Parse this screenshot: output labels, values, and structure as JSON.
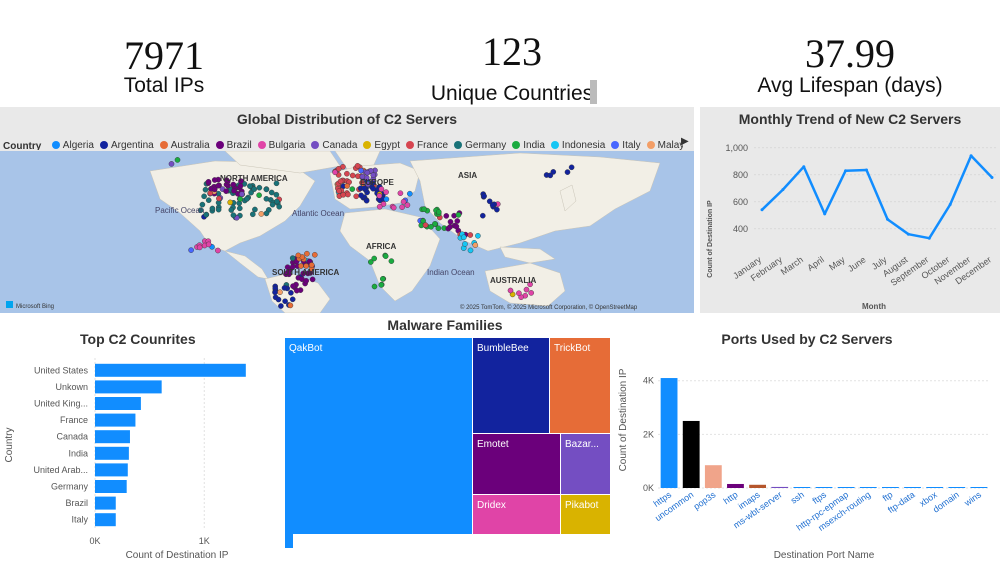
{
  "kpis": [
    {
      "value": "7971",
      "label": "Total IPs"
    },
    {
      "value": "123",
      "label": "Unique Countries"
    },
    {
      "value": "37.99",
      "label": "Avg Lifespan (days)"
    }
  ],
  "map": {
    "title": "Global Distribution of C2 Servers",
    "legend_title": "Country",
    "legend": [
      {
        "name": "Algeria",
        "color": "#118dff"
      },
      {
        "name": "Argentina",
        "color": "#12239e"
      },
      {
        "name": "Australia",
        "color": "#e66c37"
      },
      {
        "name": "Brazil",
        "color": "#6b007b"
      },
      {
        "name": "Bulgaria",
        "color": "#e044a7"
      },
      {
        "name": "Canada",
        "color": "#744ec2"
      },
      {
        "name": "Egypt",
        "color": "#d9b300"
      },
      {
        "name": "France",
        "color": "#d64550"
      },
      {
        "name": "Germany",
        "color": "#197278"
      },
      {
        "name": "India",
        "color": "#1aab40"
      },
      {
        "name": "Indonesia",
        "color": "#15c6f4"
      },
      {
        "name": "Italy",
        "color": "#4766ff"
      },
      {
        "name": "Malaysia",
        "color": "#f39e66"
      }
    ],
    "labels": {
      "north_america": "NORTH AMERICA",
      "europe": "EUROPE",
      "asia": "ASIA",
      "pacific": "Pacific\nOcean",
      "atlantic": "Atlantic\nOcean",
      "africa": "AFRICA",
      "south_america": "SOUTH AMERICA",
      "indian": "Indian\nOcean",
      "australia": "AUSTRALIA"
    },
    "brand": "Microsoft Bing",
    "copyright": "© 2025 TomTom, © 2025 Microsoft Corporation, © OpenStreetMap"
  },
  "monthly": {
    "title": "Monthly Trend of New C2 Servers",
    "chart_data": {
      "type": "line",
      "categories": [
        "January",
        "February",
        "March",
        "April",
        "May",
        "June",
        "July",
        "August",
        "September",
        "October",
        "November",
        "December"
      ],
      "values": [
        540,
        690,
        860,
        510,
        830,
        835,
        470,
        360,
        330,
        580,
        940,
        780
      ],
      "ylim": [
        250,
        1050
      ],
      "yticks": [
        "1,000",
        "800",
        "600",
        "400"
      ],
      "ytick_values": [
        1000,
        800,
        600,
        400
      ],
      "xlabel": "Month",
      "ylabel": "Count of Destination IP",
      "color": "#118dff"
    }
  },
  "countries": {
    "title": "Top C2 Counrites",
    "chart_data": {
      "type": "bar",
      "categories": [
        "United States",
        "Unkown",
        "United King...",
        "France",
        "Canada",
        "India",
        "United Arab...",
        "Germany",
        "Brazil",
        "Italy"
      ],
      "values": [
        1380,
        610,
        420,
        370,
        320,
        310,
        300,
        290,
        190,
        190
      ],
      "xlim": [
        0,
        1400
      ],
      "xticks": [
        "0K",
        "1K"
      ],
      "xtick_values": [
        0,
        1000
      ],
      "xlabel": "Count of Destination IP",
      "ylabel": "Country",
      "color": "#118dff"
    }
  },
  "malware": {
    "title": "Malware Families",
    "chart_data": {
      "type": "treemap",
      "items": [
        {
          "name": "QakBot",
          "color": "#118dff"
        },
        {
          "name": "BumbleBee",
          "color": "#12239e"
        },
        {
          "name": "TrickBot",
          "color": "#e66c37"
        },
        {
          "name": "Emotet",
          "color": "#6b007b"
        },
        {
          "name": "Bazar...",
          "color": "#744ec2"
        },
        {
          "name": "Dridex",
          "color": "#e044a7"
        },
        {
          "name": "Pikabot",
          "color": "#d9b300"
        }
      ]
    }
  },
  "ports": {
    "title": "Ports Used by C2 Servers",
    "chart_data": {
      "type": "bar",
      "categories": [
        "https",
        "uncommon",
        "pop3s",
        "http",
        "imaps",
        "ms-wbt-server",
        "ssh",
        "ftps",
        "http-rpc-epmap",
        "msexch-routing",
        "ftp",
        "ftp-data",
        "xbox",
        "domain",
        "wins"
      ],
      "values": [
        4100,
        2500,
        850,
        150,
        120,
        40,
        30,
        25,
        20,
        15,
        12,
        10,
        8,
        6,
        5
      ],
      "colors": [
        "#118dff",
        "#000000",
        "#f0a48a",
        "#6b007b",
        "#b5562c",
        "#744ec2",
        "#118dff",
        "#118dff",
        "#118dff",
        "#118dff",
        "#118dff",
        "#118dff",
        "#118dff",
        "#118dff",
        "#118dff"
      ],
      "ylim": [
        0,
        4400
      ],
      "yticks": [
        "4K",
        "2K",
        "0K"
      ],
      "ytick_values": [
        4000,
        2000,
        0
      ],
      "xlabel": "Destination Port Name",
      "ylabel": "Count of Destination IP"
    }
  }
}
